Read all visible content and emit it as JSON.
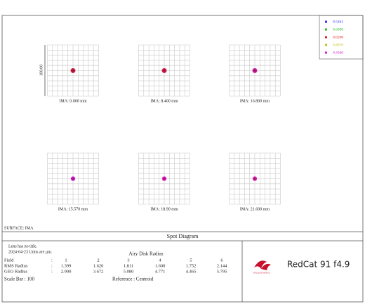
{
  "legend": [
    {
      "label": "0.5461",
      "color": "#3030ff"
    },
    {
      "label": "0.6000",
      "color": "#20c020"
    },
    {
      "label": "0.6200",
      "color": "#e02020"
    },
    {
      "label": "0.4970",
      "color": "#c0c020"
    },
    {
      "label": "0.4360",
      "color": "#d020d0"
    }
  ],
  "scale_label": "100.00",
  "fields": [
    {
      "label": "IMA: 0.000 mm",
      "spot_color": "#d02040"
    },
    {
      "label": "IMA: 8.400 mm",
      "spot_color": "#d02050"
    },
    {
      "label": "IMA: 16.800 mm",
      "spot_color": "#d020a0"
    },
    {
      "label": "IMA: 15.570 mm",
      "spot_color": "#d020d0"
    },
    {
      "label": "IMA: 18.90 mm",
      "spot_color": "#e020c0"
    },
    {
      "label": "IMA: 21.600 mm",
      "spot_color": "#e020b0"
    }
  ],
  "surface": "SURFACE: IMA",
  "footer": {
    "title": "Spot Diagram",
    "lens": "Lens has no title.",
    "date": "2024-04-23 Units are µm.",
    "airy": "Airy Disk Radius",
    "rows": [
      [
        "Field",
        ":",
        "1",
        "2",
        "3",
        "4",
        "5",
        "6"
      ],
      [
        "RMS Radius",
        ":",
        "1.399",
        "1.620",
        "1.811",
        "1.600",
        "1.752",
        "2.144"
      ],
      [
        "GEO Radius",
        ":",
        "2.900",
        "3.672",
        "5.080",
        "4.771",
        "4.465",
        "5.795"
      ]
    ],
    "scale_bar": "Scale Bar : 100",
    "reference": "Reference : Centroid"
  },
  "logo": {
    "brand": "RedCat 91  f4.9",
    "maker": "WILLIAM OPTICS"
  }
}
